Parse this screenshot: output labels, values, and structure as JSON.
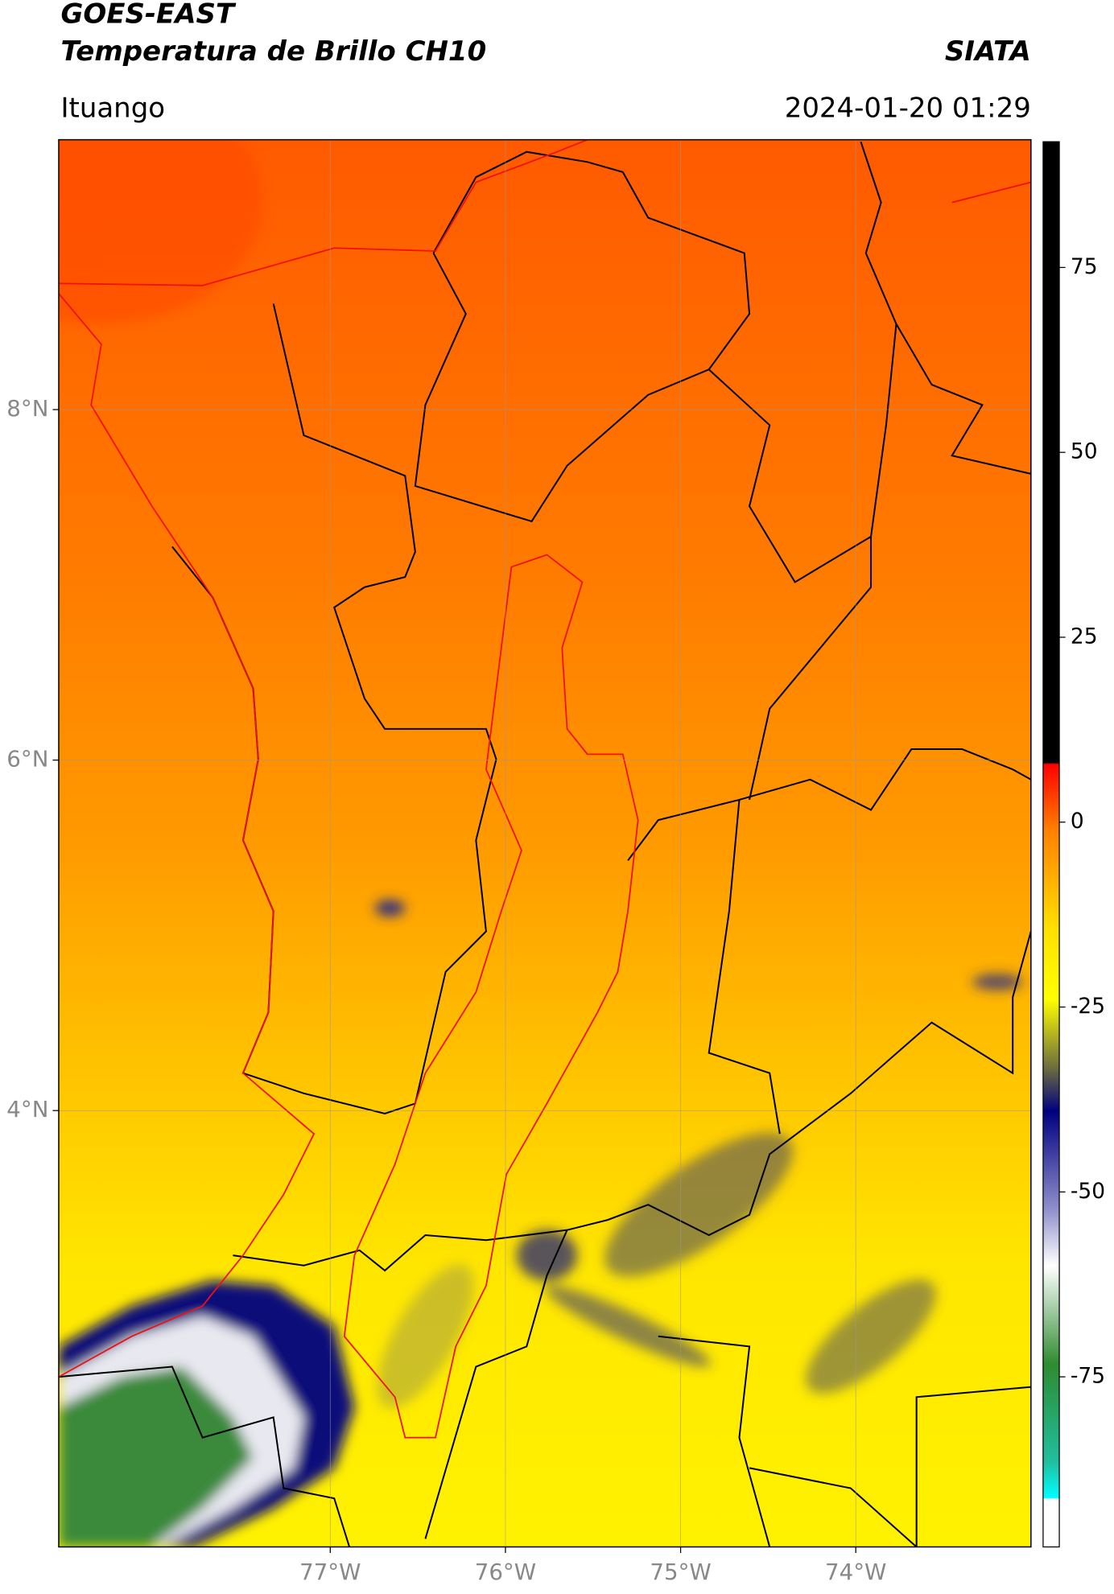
{
  "header": {
    "title": "GOES-EAST",
    "product": "Temperatura de Brillo CH10",
    "agency": "SIATA",
    "region": "Ituango",
    "datetime": "2024-01-20 01:29"
  },
  "map": {
    "xlim": [
      -78.55,
      -73.0
    ],
    "ylim": [
      1.51,
      9.54
    ],
    "xticks": [
      {
        "value": -77,
        "label": "77°W"
      },
      {
        "value": -76,
        "label": "76°W"
      },
      {
        "value": -75,
        "label": "75°W"
      },
      {
        "value": -74,
        "label": "74°W"
      }
    ],
    "yticks": [
      {
        "value": 8,
        "label": "8°N"
      },
      {
        "value": 6,
        "label": "6°N"
      },
      {
        "value": 4,
        "label": "4°N"
      }
    ],
    "grid": true
  },
  "colorbar": {
    "clim": [
      -98,
      92
    ],
    "ticks": [
      75,
      50,
      25,
      0,
      -25,
      -50,
      -75
    ]
  }
}
